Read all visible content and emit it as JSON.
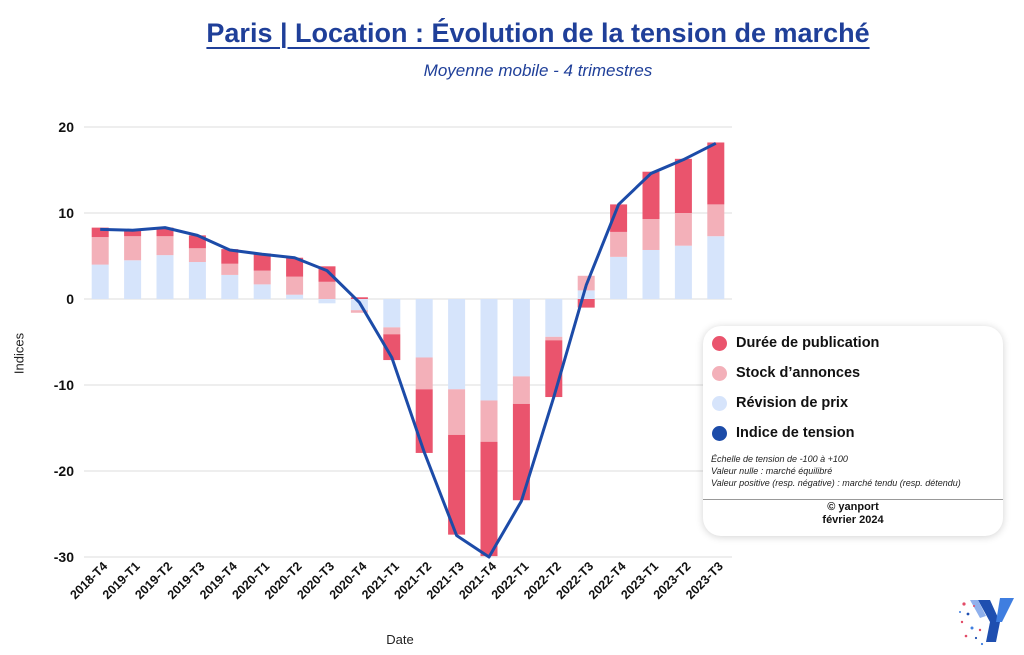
{
  "title": "Paris | Location : Évolution de la tension de marché",
  "subtitle": "Moyenne mobile - 4 trimestres",
  "legend": {
    "items": [
      {
        "label": "Durée de publication",
        "color": "#ea546d"
      },
      {
        "label": "Stock d’annonces",
        "color": "#f3b0b9"
      },
      {
        "label": "Révision de prix",
        "color": "#d6e4fb"
      },
      {
        "label": "Indice de tension",
        "color": "#1c4ba8"
      }
    ],
    "notes": [
      "Échelle de tension de -100 à +100",
      "Valeur nulle : marché équilibré",
      "Valeur positive (resp. négative) : marché tendu (resp. détendu)"
    ],
    "credit_brand": "yanport",
    "credit_date": "février 2024"
  },
  "chart_data": {
    "type": "bar",
    "stacked": true,
    "xlabel": "Date",
    "ylabel": "Indices",
    "ylim": [
      -30,
      20
    ],
    "yticks": [
      20,
      10,
      0,
      -10,
      -20,
      -30
    ],
    "grid": true,
    "legend_position": "right",
    "categories": [
      "2018-T4",
      "2019-T1",
      "2019-T2",
      "2019-T3",
      "2019-T4",
      "2020-T1",
      "2020-T2",
      "2020-T3",
      "2020-T4",
      "2021-T1",
      "2021-T2",
      "2021-T3",
      "2021-T4",
      "2022-T1",
      "2022-T2",
      "2022-T3",
      "2022-T4",
      "2023-T1",
      "2023-T2",
      "2023-T3"
    ],
    "series": [
      {
        "name": "Révision de prix",
        "color": "#d6e4fb",
        "values": [
          4.0,
          4.5,
          5.1,
          4.3,
          2.8,
          1.7,
          0.5,
          -0.5,
          -1.3,
          -3.3,
          -6.8,
          -10.5,
          -11.8,
          -9.0,
          -4.4,
          1.0,
          4.9,
          5.7,
          6.2,
          7.3
        ]
      },
      {
        "name": "Stock d’annonces",
        "color": "#f3b0b9",
        "values": [
          3.2,
          2.8,
          2.2,
          1.6,
          1.3,
          1.6,
          2.1,
          2.0,
          -0.3,
          -0.8,
          -3.7,
          -5.3,
          -4.8,
          -3.2,
          -0.4,
          1.7,
          2.9,
          3.6,
          3.8,
          3.7
        ]
      },
      {
        "name": "Durée de publication",
        "color": "#ea546d",
        "values": [
          1.1,
          0.8,
          1.0,
          1.5,
          1.7,
          2.0,
          2.2,
          1.8,
          0.2,
          -3.0,
          -7.4,
          -11.6,
          -13.3,
          -11.2,
          -6.6,
          -1.0,
          3.2,
          5.5,
          6.3,
          7.2
        ]
      }
    ],
    "line": {
      "name": "Indice de tension",
      "color": "#1c4ba8",
      "values": [
        8.1,
        8.0,
        8.3,
        7.4,
        5.7,
        5.2,
        4.8,
        3.3,
        -0.4,
        -6.8,
        -17.8,
        -27.5,
        -30.0,
        -23.5,
        -11.4,
        1.6,
        11.0,
        14.6,
        16.2,
        18.1
      ]
    }
  }
}
